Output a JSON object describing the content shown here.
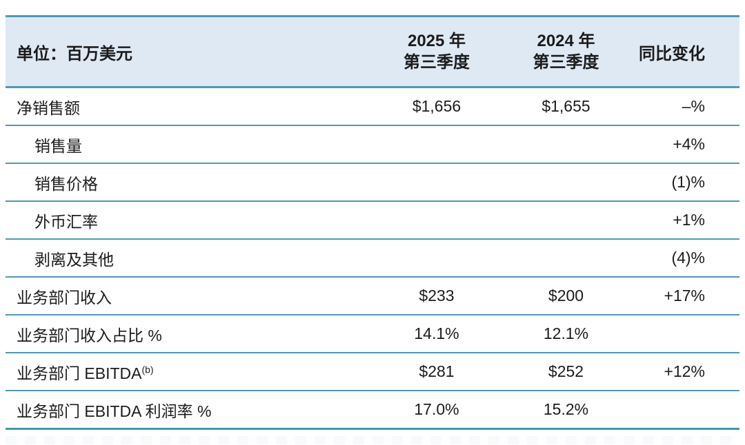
{
  "table": {
    "unit_label": "单位：百万美元",
    "columns": [
      {
        "line1": "2025 年",
        "line2": "第三季度"
      },
      {
        "line1": "2024 年",
        "line2": "第三季度"
      },
      {
        "label": "同比变化"
      }
    ],
    "rows": [
      {
        "label": "净销售额",
        "indent": false,
        "q3_2025": "$1,656",
        "q3_2024": "$1,655",
        "yoy": "–%"
      },
      {
        "label": "销售量",
        "indent": true,
        "q3_2025": "",
        "q3_2024": "",
        "yoy": "+4%"
      },
      {
        "label": "销售价格",
        "indent": true,
        "q3_2025": "",
        "q3_2024": "",
        "yoy": "(1)%"
      },
      {
        "label": "外币汇率",
        "indent": true,
        "q3_2025": "",
        "q3_2024": "",
        "yoy": "+1%"
      },
      {
        "label": "剥离及其他",
        "indent": true,
        "q3_2025": "",
        "q3_2024": "",
        "yoy": "(4)%"
      },
      {
        "label": "业务部门收入",
        "indent": false,
        "q3_2025": "$233",
        "q3_2024": "$200",
        "yoy": "+17%"
      },
      {
        "label": "业务部门收入占比 %",
        "indent": false,
        "q3_2025": "14.1%",
        "q3_2024": "12.1%",
        "yoy": ""
      },
      {
        "label": "业务部门 EBITDA",
        "indent": false,
        "superscript": "(b)",
        "q3_2025": "$281",
        "q3_2024": "$252",
        "yoy": "+12%"
      },
      {
        "label": "业务部门 EBITDA 利润率 %",
        "indent": false,
        "q3_2025": "17.0%",
        "q3_2024": "15.2%",
        "yoy": ""
      }
    ],
    "colors": {
      "header_bg": "#dfe9f4",
      "line": "#4f97b4",
      "bottom_line": "#4396ab",
      "text": "#1b1b1b"
    }
  }
}
